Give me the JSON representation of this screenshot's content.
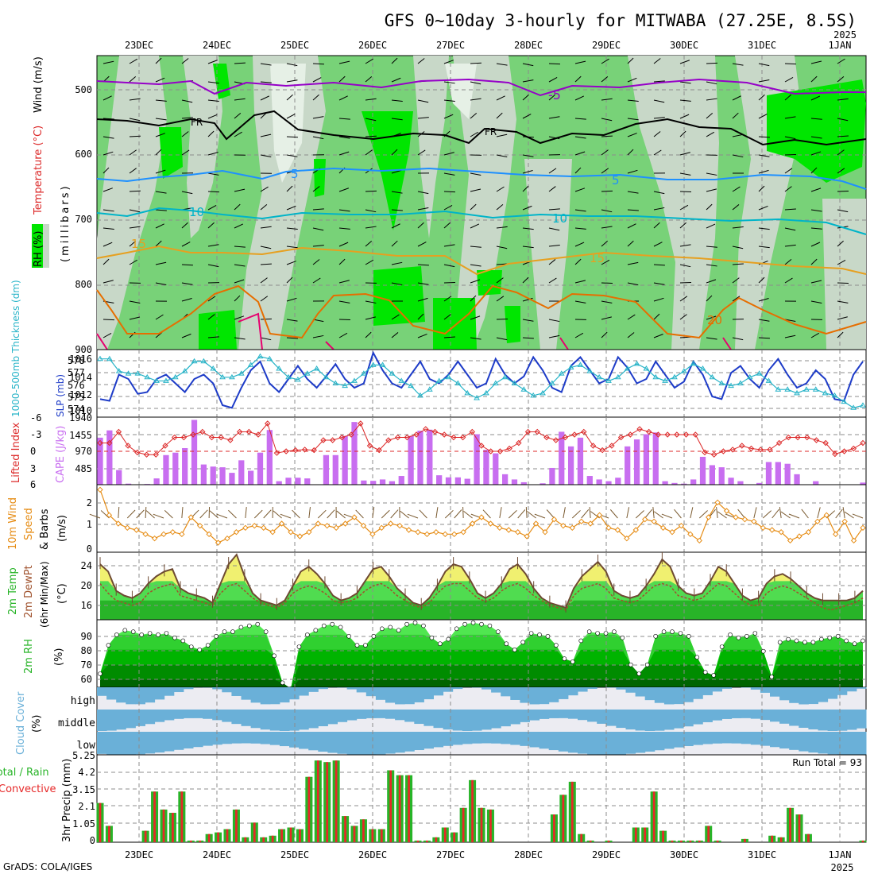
{
  "title": "GFS 0~10day 3-hourly for MITWABA (27.25E, 8.5S)",
  "year_label": "2025",
  "credit": "GrADS: COLA/IGES",
  "dates": [
    "23DEC",
    "24DEC",
    "25DEC",
    "26DEC",
    "27DEC",
    "28DEC",
    "29DEC",
    "30DEC",
    "31DEC",
    "1JAN"
  ],
  "colors": {
    "rh_light": "#c8d8c8",
    "rh_mid": "#78d278",
    "rh_high": "#00e600",
    "temp_neg5": "#9600c8",
    "temp_fr": "#000000",
    "temp_5": "#1e90ff",
    "temp_10": "#00b4c8",
    "temp_15": "#e6a020",
    "temp_20": "#e66e00",
    "temp_25": "#e6006e",
    "slp": "#1e3cc8",
    "thickness": "#28b4c8",
    "lifted": "#dc2828",
    "cape": "#c86ef0",
    "wind10": "#e68c14",
    "temp2m_fill": "#28b428",
    "rh2m_fill": "#008c00",
    "cloud": "#6ab0d8",
    "precip_total": "#28b428",
    "precip_conv": "#e62828"
  },
  "panels": {
    "upper": {
      "y_label_rh": "RH (%)",
      "y_label_temp": "Temperature (°C)",
      "y_label_wind": "Wind (m/s)",
      "y_label_units": "(millibars)",
      "y_ticks": [
        "500",
        "600",
        "700",
        "800",
        "900"
      ],
      "contour_labels": [
        "-5",
        "FR",
        "FR",
        "5",
        "5",
        "10",
        "10",
        "15",
        "15",
        "20"
      ]
    },
    "slp": {
      "y_label_thickness": "1000-500mb Thickness (dm)",
      "y_label_slp": "SLP (mb)",
      "thickness_ticks": [
        "578",
        "577",
        "576",
        "575",
        "574"
      ],
      "slp_ticks": [
        "1016",
        "1014",
        "1012",
        "1010"
      ]
    },
    "cape": {
      "y_label_lifted": "Lifted Index",
      "y_label_cape": "CAPE (J/kg)",
      "li_ticks": [
        "-6",
        "-3",
        "0",
        "3",
        "6"
      ],
      "cape_ticks": [
        "1940",
        "1455",
        "970",
        "485"
      ]
    },
    "wind10": {
      "y_label_1": "10m Wind",
      "y_label_2": "Speed",
      "y_label_3": "& Barbs",
      "y_label_units": "(m/s)",
      "y_ticks": [
        "2",
        "1",
        "0"
      ]
    },
    "temp2m": {
      "y_label_1": "2m Temp",
      "y_label_2": "2m DewPt",
      "y_label_3": "(6hr Min/Max)",
      "y_label_units": "(°C)",
      "y_ticks": [
        "24",
        "20",
        "16"
      ]
    },
    "rh2m": {
      "y_label": "2m RH",
      "y_label_units": "(%)",
      "y_ticks": [
        "90",
        "80",
        "70",
        "60"
      ]
    },
    "cloud": {
      "y_label": "Cloud Cover",
      "y_label_units": "(%)",
      "levels": [
        "high",
        "middle",
        "low"
      ]
    },
    "precip": {
      "y_label_total": "Total / Rain",
      "y_label_conv": "Convective",
      "y_label_units": "3hr Precip (mm)",
      "y_ticks": [
        "5.25",
        "4.2",
        "3.15",
        "2.1",
        "1.05",
        "0"
      ],
      "run_total": "Run Total = 93"
    }
  },
  "chart_data": [
    {
      "type": "line",
      "title": "1000-500mb Thickness (dm) / SLP (mb)",
      "series": [
        {
          "name": "SLP (mb)",
          "axis": "right",
          "values": [
            1011.2,
            1011.0,
            1014.0,
            1013.5,
            1011.8,
            1012.0,
            1013.5,
            1014.0,
            1013.0,
            1012.0,
            1013.5,
            1014.0,
            1013.0,
            1010.5,
            1010.2,
            1012.5,
            1014.5,
            1015.5,
            1013.0,
            1012.0,
            1013.5,
            1015.0,
            1013.5,
            1012.5,
            1013.8,
            1015.2,
            1013.5,
            1012.5,
            1013.0,
            1016.5,
            1014.5,
            1013.0,
            1012.5,
            1014.0,
            1015.5,
            1013.5,
            1013.0,
            1014.0,
            1015.5,
            1014.0,
            1012.5,
            1013.0,
            1015.8,
            1014.0,
            1013.0,
            1013.8,
            1016.0,
            1014.5,
            1012.5,
            1012.0,
            1015.0,
            1016.0,
            1014.5,
            1013.0,
            1013.5,
            1016.0,
            1014.8,
            1013.0,
            1013.5,
            1015.5,
            1014.0,
            1012.5,
            1013.2,
            1015.5,
            1014.0,
            1011.5,
            1011.2,
            1014.2,
            1015.0,
            1013.5,
            1012.5,
            1014.5,
            1015.8,
            1014.0,
            1012.5,
            1013.0,
            1014.5,
            1013.5,
            1011.2,
            1011.0,
            1014.0,
            1015.5
          ]
        },
        {
          "name": "1000-500mb Thickness (dm)",
          "axis": "left",
          "values": [
            578.0,
            578.0,
            577.0,
            576.8,
            576.8,
            576.5,
            576.2,
            576.2,
            576.5,
            577.0,
            577.8,
            577.8,
            577.2,
            576.5,
            576.5,
            576.8,
            577.5,
            578.2,
            578.0,
            577.2,
            576.5,
            576.3,
            576.8,
            577.2,
            576.5,
            576.0,
            575.8,
            576.2,
            576.8,
            577.5,
            577.5,
            576.8,
            576.2,
            575.8,
            575.0,
            575.5,
            576.2,
            576.5,
            576.0,
            575.2,
            574.8,
            575.2,
            576.0,
            576.5,
            576.0,
            575.5,
            575.0,
            575.2,
            576.0,
            576.8,
            577.3,
            577.5,
            577.0,
            576.5,
            576.2,
            576.5,
            577.2,
            577.6,
            577.2,
            576.5,
            576.2,
            576.5,
            577.0,
            577.6,
            577.2,
            576.5,
            576.0,
            575.8,
            576.0,
            576.5,
            576.8,
            576.2,
            575.5,
            575.5,
            575.2,
            575.5,
            575.5,
            575.2,
            575.0,
            574.5,
            574.0,
            574.2
          ]
        }
      ],
      "ylim_left": [
        573.5,
        578.5
      ],
      "ylim_right": [
        1009.5,
        1016.5
      ]
    },
    {
      "type": "bar",
      "title": "CAPE (J/kg) / Lifted Index",
      "series": [
        {
          "name": "CAPE (J/kg)",
          "values": [
            1350,
            1560,
            420,
            30,
            0,
            20,
            180,
            850,
            920,
            1050,
            1860,
            580,
            520,
            500,
            340,
            700,
            400,
            920,
            1570,
            100,
            200,
            200,
            180,
            0,
            850,
            850,
            1400,
            1800,
            120,
            110,
            150,
            100,
            250,
            1400,
            1550,
            1580,
            270,
            210,
            210,
            170,
            1450,
            1000,
            900,
            300,
            150,
            70,
            0,
            40,
            480,
            1520,
            1100,
            1350,
            250,
            150,
            100,
            200,
            1100,
            1300,
            1450,
            1500,
            100,
            50,
            30,
            150,
            800,
            560,
            500,
            200,
            100,
            0,
            50,
            650,
            650,
            600,
            300,
            0,
            100,
            0,
            0,
            0,
            0,
            60
          ]
        },
        {
          "name": "Lifted Index",
          "values": [
            -1.5,
            -1.5,
            -3.5,
            -1.0,
            0.2,
            0.6,
            0.6,
            -1.0,
            -2.5,
            -2.5,
            -3.0,
            -3.5,
            -2.5,
            -2.5,
            -2.0,
            -3.5,
            -3.5,
            -3.0,
            -5.0,
            0.3,
            0.0,
            -0.2,
            -0.3,
            -0.2,
            -2.0,
            -2.0,
            -2.5,
            -3.0,
            -5.0,
            -1.0,
            -0.2,
            -2.0,
            -2.5,
            -2.5,
            -3.0,
            -4.0,
            -3.5,
            -3.0,
            -2.5,
            -2.5,
            -3.5,
            -1.0,
            0.0,
            0.0,
            -0.5,
            -1.5,
            -3.5,
            -3.5,
            -2.5,
            -2.0,
            -2.5,
            -3.0,
            -3.5,
            -1.0,
            -0.2,
            -1.0,
            -2.5,
            -3.0,
            -4.0,
            -3.5,
            -3.0,
            -3.0,
            -3.0,
            -3.0,
            -3.0,
            0.2,
            0.6,
            0.0,
            -0.3,
            -1.0,
            -0.5,
            -0.3,
            -0.3,
            -1.5,
            -2.5,
            -2.5,
            -2.5,
            -2.0,
            -1.5,
            0.5,
            0.0,
            -0.5,
            -1.5
          ]
        }
      ],
      "ylim_cape": [
        0,
        1940
      ],
      "ylim_li": [
        6,
        -6
      ]
    },
    {
      "type": "line",
      "title": "10m Wind Speed (m/s)",
      "series": [
        {
          "name": "10m Wind Speed",
          "values": [
            2.8,
            1.6,
            1.2,
            1.0,
            0.9,
            0.7,
            0.5,
            0.7,
            0.8,
            0.7,
            1.5,
            1.1,
            0.7,
            0.3,
            0.5,
            0.8,
            1.0,
            1.1,
            1.0,
            0.8,
            1.2,
            0.8,
            0.6,
            0.8,
            1.2,
            1.1,
            1.0,
            1.2,
            1.5,
            1.1,
            0.7,
            1.0,
            1.2,
            1.1,
            0.9,
            0.8,
            0.7,
            0.8,
            0.7,
            0.7,
            0.8,
            1.2,
            1.5,
            1.2,
            1.0,
            0.9,
            0.8,
            0.6,
            1.2,
            0.8,
            1.4,
            1.1,
            1.0,
            1.3,
            1.2,
            1.6,
            1.0,
            0.9,
            0.5,
            0.9,
            1.4,
            1.3,
            1.0,
            0.8,
            1.1,
            0.7,
            0.4,
            1.5,
            2.2,
            1.8,
            1.5,
            1.4,
            1.3,
            1.0,
            0.9,
            0.8,
            0.4,
            0.6,
            0.8,
            1.3,
            1.6,
            0.7,
            1.3,
            0.4,
            1.0
          ]
        }
      ],
      "ylim": [
        0,
        3
      ]
    },
    {
      "type": "area",
      "title": "2m Temp / 2m DewPt (°C)",
      "series": [
        {
          "name": "2m Temp",
          "values": [
            23.5,
            22.0,
            18.0,
            17.0,
            16.5,
            17.5,
            19.5,
            21.0,
            22.0,
            22.5,
            18.5,
            17.5,
            17.0,
            16.5,
            15.5,
            19.5,
            23.5,
            25.5,
            21.0,
            17.5,
            16.0,
            15.5,
            15.0,
            16.0,
            19.0,
            22.0,
            23.0,
            21.5,
            19.5,
            17.0,
            16.0,
            16.5,
            17.5,
            20.0,
            22.5,
            23.0,
            21.0,
            18.5,
            17.0,
            15.5,
            15.0,
            16.5,
            19.0,
            22.0,
            23.5,
            23.0,
            20.5,
            17.5,
            16.5,
            17.5,
            19.5,
            22.5,
            23.5,
            21.5,
            18.5,
            16.5,
            15.5,
            15.0,
            14.5,
            18.5,
            21.0,
            22.5,
            24.0,
            22.0,
            18.0,
            17.0,
            16.5,
            17.0,
            19.0,
            21.5,
            24.5,
            23.0,
            19.0,
            17.5,
            17.0,
            17.5,
            20.0,
            23.0,
            22.0,
            19.5,
            17.0,
            16.0,
            16.5,
            19.5,
            21.0,
            21.5,
            20.5,
            19.0,
            17.5,
            16.5,
            16.0,
            16.0,
            16.0,
            16.0,
            16.5,
            18.0
          ]
        },
        {
          "name": "2m DewPt",
          "values": [
            19.5,
            17.5,
            16.0,
            15.5,
            15.0,
            15.5,
            17.5,
            18.5,
            19.0,
            19.5,
            17.0,
            16.5,
            16.0,
            15.5,
            15.0,
            17.5,
            19.0,
            19.5,
            18.0,
            16.5,
            15.5,
            15.0,
            14.5,
            15.5,
            17.5,
            18.5,
            19.0,
            18.5,
            17.5,
            16.0,
            15.5,
            15.8,
            16.5,
            18.0,
            19.0,
            19.5,
            18.5,
            17.0,
            16.0,
            15.0,
            14.5,
            15.5,
            17.5,
            19.0,
            19.5,
            19.5,
            18.0,
            16.5,
            15.8,
            16.5,
            18.0,
            19.0,
            19.5,
            18.5,
            17.0,
            16.0,
            15.0,
            14.5,
            14.0,
            17.0,
            18.5,
            19.0,
            19.5,
            18.5,
            16.5,
            16.0,
            15.5,
            16.0,
            17.5,
            19.0,
            19.5,
            19.0,
            17.0,
            16.5,
            16.0,
            16.5,
            18.0,
            19.5,
            19.0,
            17.5,
            16.0,
            15.0,
            15.0,
            17.5,
            18.5,
            19.0,
            18.5,
            17.5,
            16.5,
            15.5,
            14.5,
            14.0,
            14.5,
            15.0,
            15.5,
            16.5
          ]
        }
      ],
      "ylim": [
        12,
        26
      ]
    },
    {
      "type": "area",
      "title": "2m RH (%)",
      "series": [
        {
          "name": "2m RH",
          "values": [
            64,
            83,
            90,
            93,
            92,
            90,
            91,
            90,
            91,
            88,
            86,
            82,
            80,
            83,
            89,
            92,
            92,
            95,
            96,
            97,
            92,
            76,
            58,
            54,
            82,
            90,
            93,
            96,
            97,
            95,
            89,
            83,
            83,
            89,
            94,
            95,
            93,
            97,
            98,
            96,
            88,
            84,
            87,
            94,
            97,
            98,
            97,
            96,
            92,
            84,
            80,
            85,
            91,
            90,
            89,
            83,
            74,
            72,
            86,
            92,
            91,
            91,
            92,
            88,
            70,
            64,
            70,
            89,
            92,
            92,
            91,
            89,
            75,
            65,
            63,
            82,
            90,
            88,
            89,
            91,
            79,
            62,
            85,
            87,
            86,
            85,
            85,
            87,
            88,
            89,
            86,
            84,
            86
          ]
        }
      ],
      "ylim": [
        55,
        100
      ]
    },
    {
      "type": "bar",
      "title": "3hr Precip (mm)",
      "series": [
        {
          "name": "Total / Rain",
          "values": [
            2.4,
            1.0,
            0,
            0,
            0,
            0.7,
            3.1,
            2.0,
            1.8,
            3.1,
            0.1,
            0.1,
            0.5,
            0.6,
            0.8,
            2.0,
            0.3,
            1.2,
            0.3,
            0.4,
            0.8,
            0.9,
            0.8,
            4.0,
            5.0,
            4.9,
            5.0,
            1.6,
            1.0,
            1.4,
            0.8,
            0.8,
            4.4,
            4.1,
            4.1,
            0.1,
            0.1,
            0.3,
            0.9,
            0.6,
            2.1,
            3.8,
            2.1,
            2.0,
            0,
            0,
            0,
            0,
            0,
            0,
            1.7,
            2.9,
            3.7,
            0.5,
            0.1,
            0,
            0.1,
            0,
            0,
            0.9,
            0.9,
            3.1,
            0.7,
            0.1,
            0.1,
            0.1,
            0.1,
            1.0,
            0.1,
            0,
            0,
            0.2,
            0,
            0,
            0.4,
            0.3,
            2.1,
            1.7,
            0.5,
            0,
            0,
            0,
            0,
            0,
            0.1
          ]
        }
      ],
      "ylim": [
        0,
        5.25
      ],
      "run_total": 93
    }
  ]
}
